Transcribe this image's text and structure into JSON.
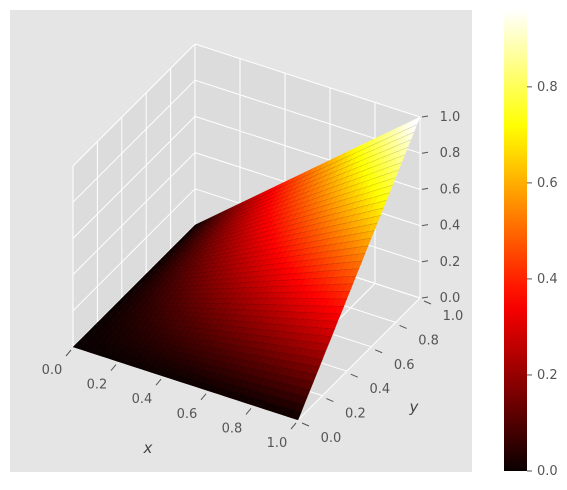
{
  "chart_data": {
    "type": "surface",
    "function": "z = x * y",
    "xlabel": "x",
    "ylabel": "y",
    "zlabel": "",
    "xlim": [
      0,
      1
    ],
    "ylim": [
      0,
      1
    ],
    "zlim": [
      0,
      1
    ],
    "x_ticks": [
      "0.0",
      "0.2",
      "0.4",
      "0.6",
      "0.8",
      "1.0"
    ],
    "y_ticks": [
      "0.0",
      "0.2",
      "0.4",
      "0.6",
      "0.8",
      "1.0"
    ],
    "z_ticks": [
      "0.0",
      "0.2",
      "0.4",
      "0.6",
      "0.8",
      "1.0"
    ],
    "colorbar": {
      "colormap": "hot",
      "range": [
        0,
        0.96
      ],
      "ticks": [
        "0.0",
        "0.2",
        "0.4",
        "0.6",
        "0.8"
      ]
    },
    "grid": true,
    "style": "ggplot",
    "background_color": "#e5e5e5",
    "grid_color": "#ffffff"
  }
}
